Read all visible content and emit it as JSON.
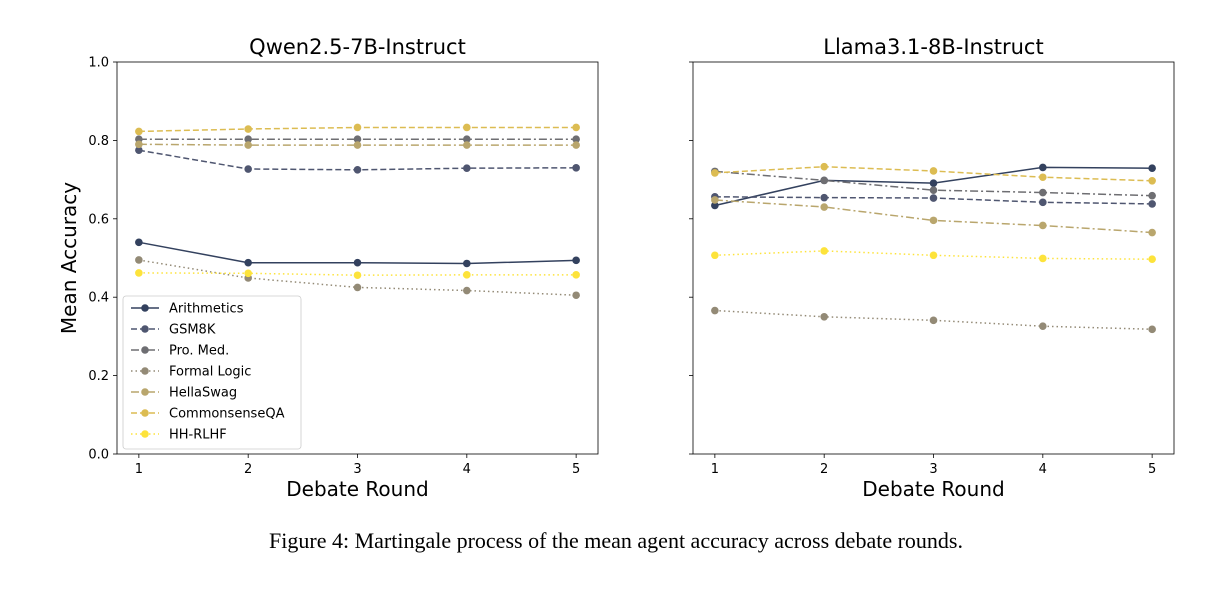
{
  "chart_data": [
    {
      "type": "line",
      "title": "Qwen2.5-7B-Instruct",
      "xlabel": "Debate Round",
      "ylabel": "Mean Accuracy",
      "x": [
        1,
        2,
        3,
        4,
        5
      ],
      "xticks": [
        "1",
        "2",
        "3",
        "4",
        "5"
      ],
      "yticks": [
        "0.0",
        "0.2",
        "0.4",
        "0.6",
        "0.8",
        "1.0"
      ],
      "ylim": [
        0.0,
        1.0
      ],
      "legend": "lower-left",
      "series": [
        {
          "name": "Arithmetics",
          "values": [
            0.54,
            0.488,
            0.488,
            0.486,
            0.494
          ],
          "color": "#33415e",
          "dash": "solid"
        },
        {
          "name": "GSM8K",
          "values": [
            0.775,
            0.727,
            0.725,
            0.729,
            0.73
          ],
          "color": "#4f5670",
          "dash": "dashed"
        },
        {
          "name": "Pro. Med.",
          "values": [
            0.803,
            0.803,
            0.803,
            0.803,
            0.803
          ],
          "color": "#6e6e72",
          "dash": "dashdot"
        },
        {
          "name": "Formal Logic",
          "values": [
            0.495,
            0.449,
            0.425,
            0.417,
            0.405
          ],
          "color": "#938a76",
          "dash": "dotted"
        },
        {
          "name": "HellaSwag",
          "values": [
            0.79,
            0.788,
            0.788,
            0.788,
            0.788
          ],
          "color": "#b9a66d",
          "dash": "dashdot"
        },
        {
          "name": "CommonsenseQA",
          "values": [
            0.823,
            0.829,
            0.833,
            0.833,
            0.833
          ],
          "color": "#dcbc52",
          "dash": "dashed"
        },
        {
          "name": "HH-RLHF",
          "values": [
            0.462,
            0.461,
            0.456,
            0.457,
            0.457
          ],
          "color": "#fde33b",
          "dash": "dotted"
        }
      ]
    },
    {
      "type": "line",
      "title": "Llama3.1-8B-Instruct",
      "xlabel": "Debate Round",
      "ylabel": "",
      "x": [
        1,
        2,
        3,
        4,
        5
      ],
      "xticks": [
        "1",
        "2",
        "3",
        "4",
        "5"
      ],
      "yticks": [],
      "ylim": [
        0.0,
        1.0
      ],
      "legend": "none",
      "series": [
        {
          "name": "Arithmetics",
          "values": [
            0.634,
            0.698,
            0.691,
            0.731,
            0.729
          ],
          "color": "#33415e",
          "dash": "solid"
        },
        {
          "name": "GSM8K",
          "values": [
            0.656,
            0.654,
            0.653,
            0.642,
            0.638
          ],
          "color": "#4f5670",
          "dash": "dashed"
        },
        {
          "name": "Pro. Med.",
          "values": [
            0.721,
            0.698,
            0.673,
            0.667,
            0.659
          ],
          "color": "#6e6e72",
          "dash": "dashdot"
        },
        {
          "name": "Formal Logic",
          "values": [
            0.366,
            0.35,
            0.341,
            0.326,
            0.318
          ],
          "color": "#938a76",
          "dash": "dotted"
        },
        {
          "name": "HellaSwag",
          "values": [
            0.648,
            0.63,
            0.596,
            0.583,
            0.565
          ],
          "color": "#b9a66d",
          "dash": "dashdot"
        },
        {
          "name": "CommonsenseQA",
          "values": [
            0.717,
            0.733,
            0.722,
            0.706,
            0.697
          ],
          "color": "#dcbc52",
          "dash": "dashed"
        },
        {
          "name": "HH-RLHF",
          "values": [
            0.507,
            0.518,
            0.507,
            0.499,
            0.497
          ],
          "color": "#fde33b",
          "dash": "dotted"
        }
      ]
    }
  ],
  "caption": "Figure 4: Martingale process of the mean agent accuracy across debate rounds."
}
